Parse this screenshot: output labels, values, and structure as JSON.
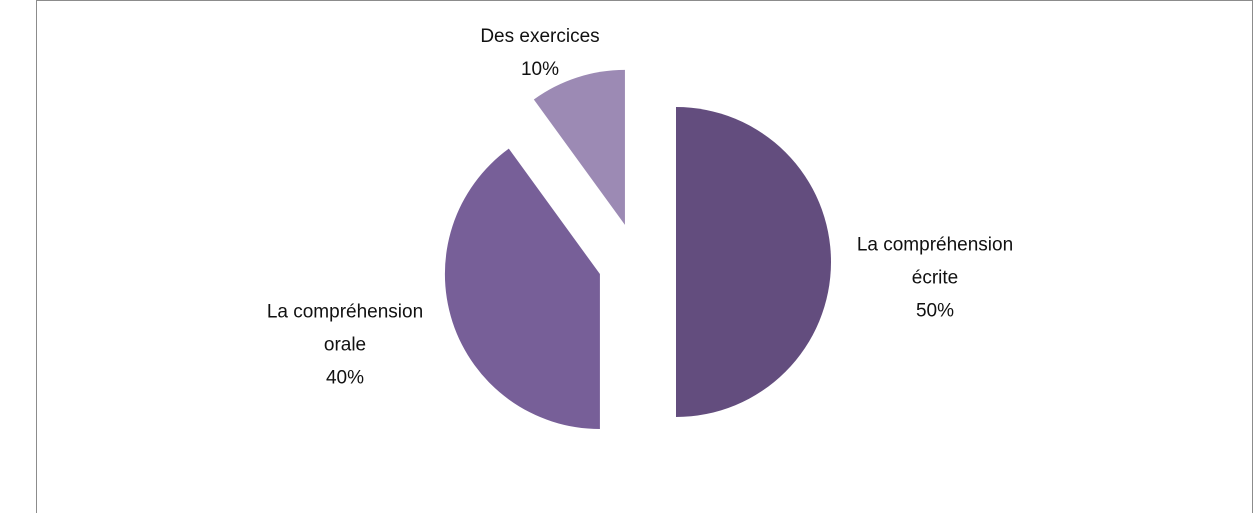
{
  "chart_data": {
    "type": "pie",
    "categories": [
      "La compréhension écrite",
      "La compréhension orale",
      "Des exercices"
    ],
    "values": [
      50,
      40,
      10
    ],
    "value_labels": [
      "50%",
      "40%",
      "10%"
    ],
    "colors": [
      "#634d7e",
      "#775f98",
      "#9c8ab4"
    ]
  }
}
